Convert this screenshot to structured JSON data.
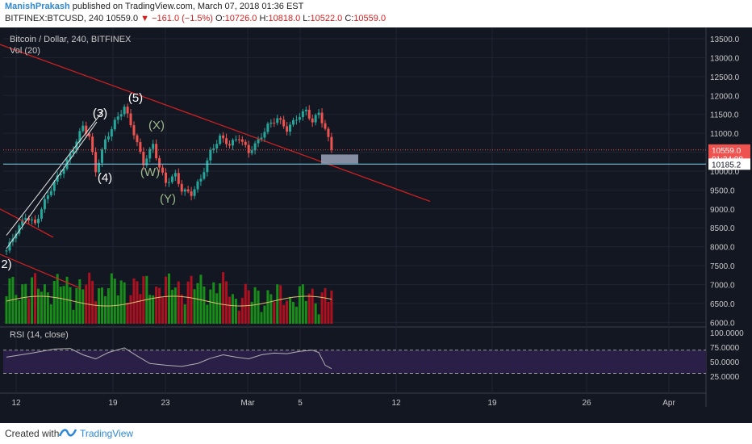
{
  "header": {
    "author": "ManishPrakash",
    "published_text": "published on TradingView.com, March 07, 2018 01:36 EST",
    "symbol": "BITFINEX:BTCUSD, 240",
    "last": "10559.0",
    "change": "−161.0 (−1.5%)",
    "o_label": "O:",
    "o_value": "10726.0",
    "h_label": "H:",
    "h_value": "10818.0",
    "l_label": "L:",
    "l_value": "10522.0",
    "c_label": "C:",
    "c_value": "10559.0"
  },
  "footer": {
    "created": "Created with",
    "brand": "TradingView"
  },
  "colors": {
    "background": "#131722",
    "up": "#26a69a",
    "down": "#ef5350",
    "vol_up": "#1a9a1a",
    "vol_down": "#c01020",
    "trendline": "#d82020",
    "rsi_fill": "#2a1f47",
    "rsi_line": "#b0b0b0",
    "vol_ma": "#e0c070"
  },
  "chart_data": {
    "type": "candlestick",
    "title": "Bitcoin / Dollar, 240, BITFINEX",
    "volume_label": "Vol (20)",
    "rsi_label": "RSI (14, close)",
    "price_axis": {
      "ticks": [
        "13500.0",
        "13000.0",
        "12500.0",
        "12000.0",
        "11500.0",
        "11000.0",
        "10500.0",
        "10000.0",
        "9500.0",
        "9000.0",
        "8500.0",
        "8000.0",
        "7500.0",
        "7000.0",
        "6500.0",
        "6000.0"
      ],
      "range": [
        5900,
        13800
      ]
    },
    "rsi_axis": {
      "ticks": [
        "100.0000",
        "75.0000",
        "50.0000",
        "25.0000"
      ],
      "levels": [
        70,
        30
      ]
    },
    "x_axis": {
      "ticks": [
        "12",
        "19",
        "23",
        "Mar",
        "5",
        "12",
        "19",
        "26",
        "Apr"
      ]
    },
    "price_tags": [
      {
        "label": "10559.0",
        "value": 10559,
        "color": "#ef5350"
      },
      {
        "label": "01:24:08",
        "value": 10330,
        "color": "#ef5350"
      },
      {
        "label": "10185.2",
        "value": 10185,
        "color": "#ffffff"
      }
    ],
    "horizontal_line": 10185,
    "wave_labels": [
      "2)",
      "(3)",
      "(4)",
      "(5)",
      "(X)",
      "(W)",
      "(Y)"
    ],
    "price_path": [
      [
        0,
        7900
      ],
      [
        3,
        8400
      ],
      [
        6,
        8800
      ],
      [
        9,
        8600
      ],
      [
        12,
        9200
      ],
      [
        15,
        9700
      ],
      [
        18,
        10100
      ],
      [
        21,
        10600
      ],
      [
        24,
        11200
      ],
      [
        26,
        10900
      ],
      [
        28,
        10000
      ],
      [
        31,
        10800
      ],
      [
        34,
        11300
      ],
      [
        37,
        11700
      ],
      [
        40,
        11000
      ],
      [
        43,
        10200
      ],
      [
        46,
        10700
      ],
      [
        48,
        10100
      ],
      [
        50,
        9700
      ],
      [
        53,
        9900
      ],
      [
        55,
        9500
      ],
      [
        58,
        9400
      ],
      [
        61,
        9800
      ],
      [
        64,
        10500
      ],
      [
        67,
        10900
      ],
      [
        70,
        10700
      ],
      [
        73,
        10900
      ],
      [
        76,
        10500
      ],
      [
        79,
        10800
      ],
      [
        82,
        11200
      ],
      [
        85,
        11400
      ],
      [
        88,
        11100
      ],
      [
        91,
        11400
      ],
      [
        94,
        11600
      ],
      [
        96,
        11300
      ],
      [
        98,
        11550
      ],
      [
        100,
        11100
      ],
      [
        102,
        10600
      ]
    ],
    "rsi_path": [
      [
        0,
        58
      ],
      [
        8,
        65
      ],
      [
        15,
        72
      ],
      [
        20,
        73
      ],
      [
        24,
        62
      ],
      [
        28,
        55
      ],
      [
        32,
        66
      ],
      [
        37,
        74
      ],
      [
        41,
        60
      ],
      [
        45,
        47
      ],
      [
        50,
        44
      ],
      [
        55,
        42
      ],
      [
        60,
        47
      ],
      [
        64,
        56
      ],
      [
        68,
        62
      ],
      [
        72,
        58
      ],
      [
        76,
        55
      ],
      [
        80,
        62
      ],
      [
        84,
        65
      ],
      [
        88,
        64
      ],
      [
        92,
        68
      ],
      [
        96,
        70
      ],
      [
        98,
        66
      ],
      [
        100,
        44
      ],
      [
        102,
        38
      ]
    ]
  }
}
